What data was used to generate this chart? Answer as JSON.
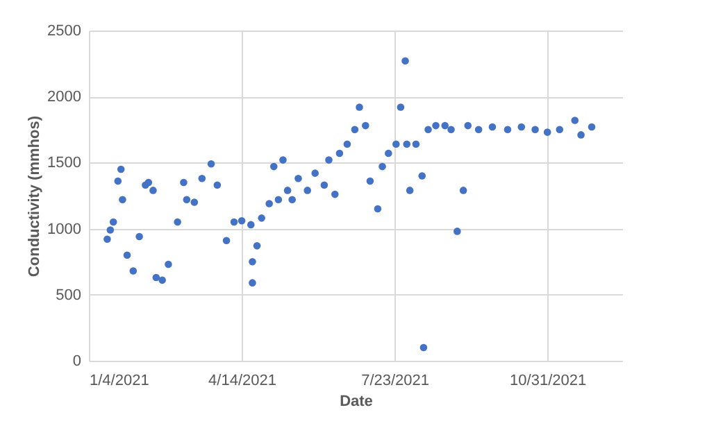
{
  "chart_data": {
    "type": "scatter",
    "xlabel": "Date",
    "ylabel": "Conductivity  (mmhos)",
    "x": [
      "2021-01-16",
      "2021-01-18",
      "2021-01-20",
      "2021-01-23",
      "2021-01-25",
      "2021-01-26",
      "2021-01-29",
      "2021-02-02",
      "2021-02-06",
      "2021-02-10",
      "2021-02-12",
      "2021-02-15",
      "2021-02-17",
      "2021-02-21",
      "2021-02-25",
      "2021-03-03",
      "2021-03-07",
      "2021-03-09",
      "2021-03-14",
      "2021-03-19",
      "2021-03-25",
      "2021-03-29",
      "2021-04-04",
      "2021-04-09",
      "2021-04-14",
      "2021-04-20",
      "2021-04-21",
      "2021-04-21",
      "2021-04-24",
      "2021-04-27",
      "2021-05-02",
      "2021-05-05",
      "2021-05-08",
      "2021-05-11",
      "2021-05-14",
      "2021-05-17",
      "2021-05-21",
      "2021-05-27",
      "2021-06-01",
      "2021-06-07",
      "2021-06-10",
      "2021-06-14",
      "2021-06-17",
      "2021-06-22",
      "2021-06-27",
      "2021-06-30",
      "2021-07-04",
      "2021-07-07",
      "2021-07-12",
      "2021-07-15",
      "2021-07-19",
      "2021-07-24",
      "2021-07-27",
      "2021-07-30",
      "2021-07-31",
      "2021-08-02",
      "2021-08-06",
      "2021-08-10",
      "2021-08-11",
      "2021-08-14",
      "2021-08-19",
      "2021-08-25",
      "2021-08-29",
      "2021-09-02",
      "2021-09-06",
      "2021-09-09",
      "2021-09-16",
      "2021-09-25",
      "2021-10-05",
      "2021-10-14",
      "2021-10-23",
      "2021-10-31",
      "2021-11-08",
      "2021-11-18",
      "2021-11-22",
      "2021-11-29"
    ],
    "series": [
      {
        "color": "#4472c4",
        "values": [
          920,
          990,
          1050,
          1360,
          1450,
          1220,
          800,
          680,
          940,
          1330,
          1350,
          1290,
          630,
          610,
          730,
          1050,
          1350,
          1220,
          1200,
          1380,
          1490,
          1330,
          910,
          1050,
          1060,
          1030,
          750,
          590,
          870,
          1080,
          1190,
          1470,
          1220,
          1520,
          1290,
          1220,
          1380,
          1290,
          1420,
          1330,
          1520,
          1260,
          1570,
          1640,
          1750,
          1920,
          1780,
          1360,
          1150,
          1470,
          1570,
          1640,
          1920,
          2270,
          1640,
          1290,
          1640,
          1400,
          100,
          1750,
          1780,
          1780,
          1750,
          980,
          1290,
          1780,
          1750,
          1770,
          1750,
          1770,
          1750,
          1730,
          1750,
          1820,
          1710,
          1770
        ]
      }
    ],
    "xlim": [
      "2021-01-04",
      "2021-12-19"
    ],
    "xticks": [
      {
        "value": "2021-01-04",
        "label": "1/4/2021"
      },
      {
        "value": "2021-04-14",
        "label": "4/14/2021"
      },
      {
        "value": "2021-07-23",
        "label": "7/23/2021"
      },
      {
        "value": "2021-10-31",
        "label": "10/31/2021"
      }
    ],
    "ylim": [
      0,
      2500
    ],
    "yticks": [
      0,
      500,
      1000,
      1500,
      2000,
      2500
    ],
    "grid": true,
    "marker": "circle"
  }
}
